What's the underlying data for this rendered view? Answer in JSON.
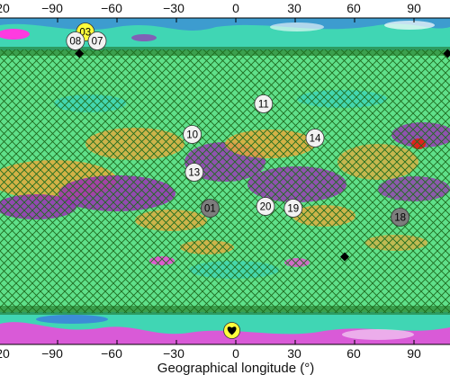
{
  "figure": {
    "xlabel": "Geographical longitude (°)",
    "top_tick_labels": [
      "20",
      "−90",
      "−60",
      "−30",
      "0",
      "30",
      "60",
      "90"
    ],
    "bottom_tick_labels": [
      "20",
      "−90",
      "−60",
      "−30",
      "0",
      "30",
      "60",
      "90"
    ]
  },
  "colors": {
    "background_green": "#5fe08a",
    "teal": "#40d6b4",
    "purple": "#9b2fb6",
    "orange": "#e8a93a",
    "magenta": "#ff3be0",
    "blue": "#3b6ee6",
    "grid_line": "#1e6b1e",
    "label_gray_light": "#f2f2f2",
    "label_gray_dark": "#7d7d7d",
    "label_yellow": "#ffff3c"
  },
  "markers": [
    {
      "id": "m03",
      "label": "03",
      "lon": -76,
      "lat": 83,
      "fill": "#ffff3c"
    },
    {
      "id": "m08",
      "label": "08",
      "lon": -81,
      "lat": 78,
      "fill": "#f2f2f2"
    },
    {
      "id": "m07",
      "label": "07",
      "lon": -70,
      "lat": 78,
      "fill": "#f2f2f2"
    },
    {
      "id": "m11",
      "label": "11",
      "lon": 14,
      "lat": 43,
      "fill": "#f2f2f2"
    },
    {
      "id": "m10",
      "label": "10",
      "lon": -22,
      "lat": 26,
      "fill": "#f2f2f2"
    },
    {
      "id": "m14",
      "label": "14",
      "lon": 40,
      "lat": 24,
      "fill": "#f2f2f2"
    },
    {
      "id": "m13",
      "label": "13",
      "lon": -21,
      "lat": 5,
      "fill": "#f2f2f2"
    },
    {
      "id": "m01",
      "label": "01",
      "lon": -13,
      "lat": -15,
      "fill": "#7d7d7d"
    },
    {
      "id": "m20",
      "label": "20",
      "lon": 15,
      "lat": -14,
      "fill": "#f2f2f2"
    },
    {
      "id": "m19",
      "label": "19",
      "lon": 29,
      "lat": -15,
      "fill": "#f2f2f2"
    },
    {
      "id": "m18",
      "label": "18",
      "lon": 83,
      "lat": -20,
      "fill": "#7d7d7d"
    }
  ],
  "diamonds": [
    {
      "lon": -79,
      "lat": 71
    },
    {
      "lon": 107,
      "lat": 71
    },
    {
      "lon": 55,
      "lat": -42
    }
  ],
  "pole_marker": {
    "lon": -2,
    "lat": -83,
    "fill": "#ffff3c",
    "icon": "heart-icon"
  }
}
